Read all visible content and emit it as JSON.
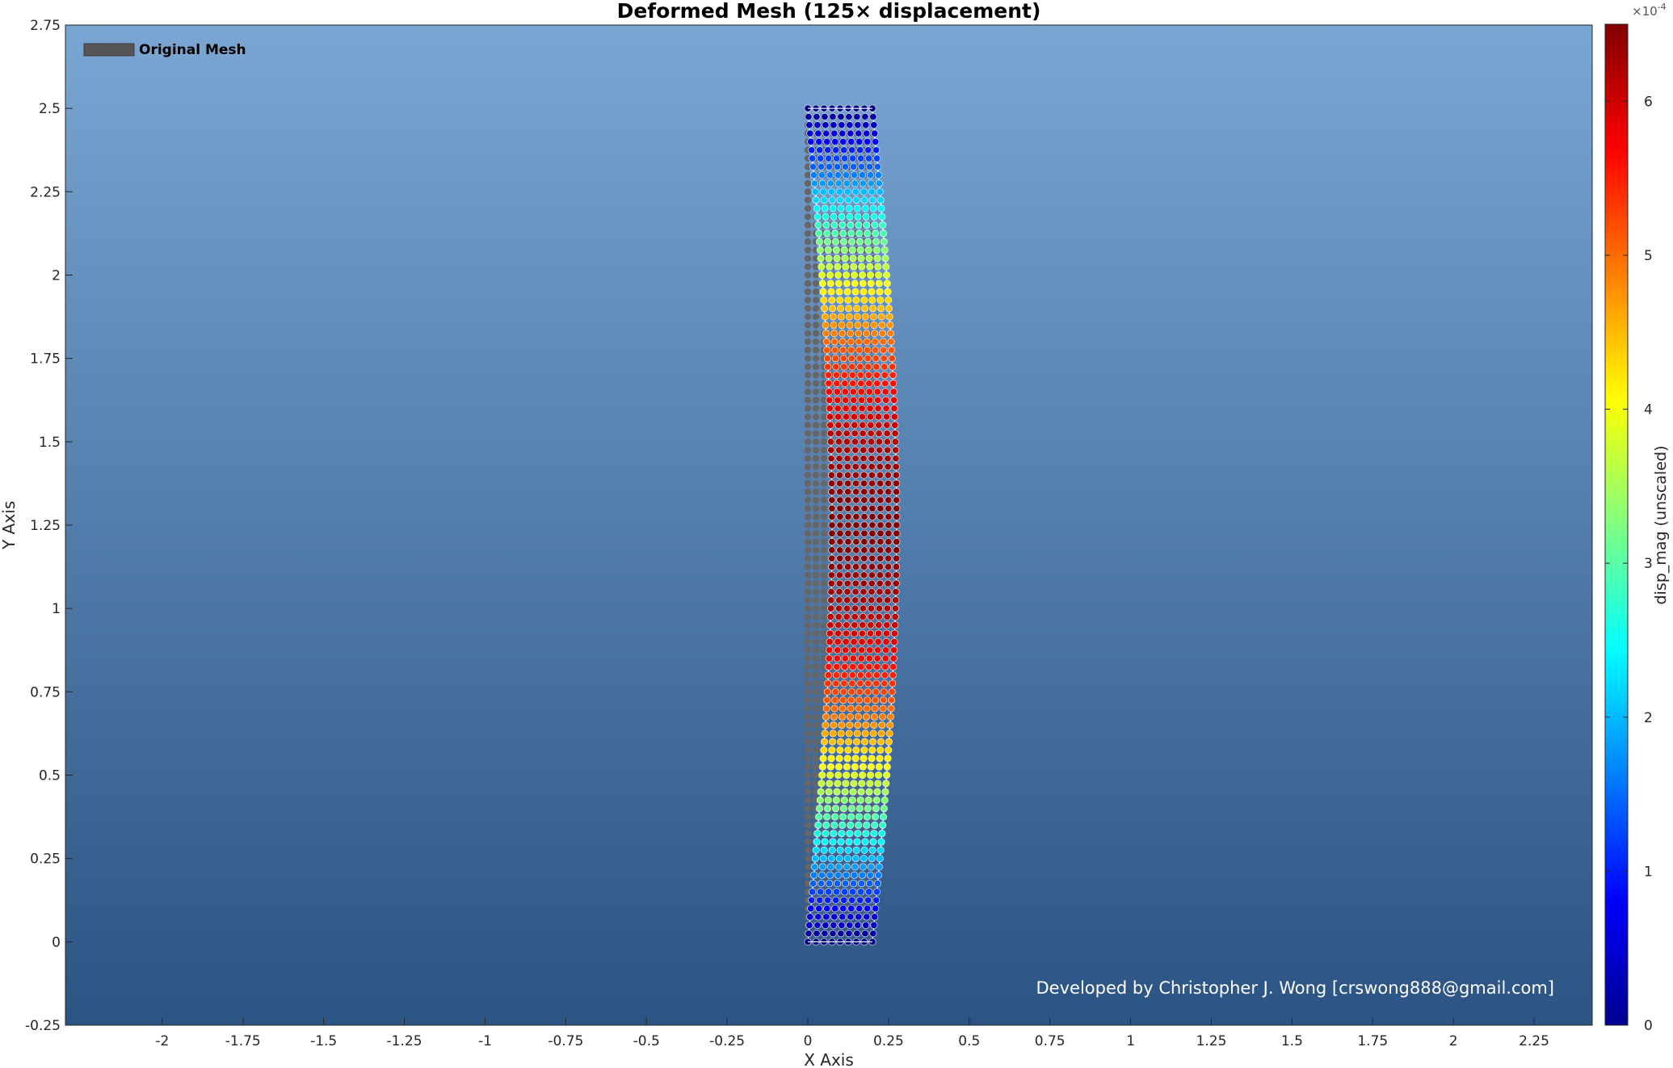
{
  "figure": {
    "credit": "Developed by Christopher J. Wong [crswong888@gmail.com]",
    "background_top": "#7aa6d3",
    "background_bottom": "#2b5383"
  },
  "chart_data": {
    "type": "scatter",
    "title": "Deformed Mesh (125× displacement)",
    "xlabel": "X Axis",
    "ylabel": "Y Axis",
    "xlim": [
      -2.3,
      2.43
    ],
    "ylim": [
      -0.25,
      2.75
    ],
    "xticks": [
      -2,
      -1.75,
      -1.5,
      -1.25,
      -1,
      -0.75,
      -0.5,
      -0.25,
      0,
      0.25,
      0.5,
      0.75,
      1,
      1.25,
      1.5,
      1.75,
      2,
      2.25
    ],
    "xtick_labels": [
      "-2",
      "-1.75",
      "-1.5",
      "-1.25",
      "-1",
      "-0.75",
      "-0.5",
      "-0.25",
      "0",
      "0.25",
      "0.5",
      "0.75",
      "1",
      "1.25",
      "1.5",
      "1.75",
      "2",
      "2.25"
    ],
    "yticks": [
      -0.25,
      0,
      0.25,
      0.5,
      0.75,
      1,
      1.25,
      1.5,
      1.75,
      2,
      2.25,
      2.5,
      2.75
    ],
    "ytick_labels": [
      "-0.25",
      "0",
      "0.25",
      "0.5",
      "0.75",
      "1",
      "1.25",
      "1.5",
      "1.75",
      "2",
      "2.25",
      "2.5",
      "2.75"
    ],
    "grid": false,
    "legend": {
      "position": "top-left",
      "entries": [
        {
          "label": "Original Mesh",
          "color": "#555555"
        }
      ]
    },
    "mesh": {
      "original_x_range": [
        0,
        0.2
      ],
      "original_y_range": [
        0,
        2.5
      ],
      "nodes_x": 9,
      "nodes_y": 101,
      "max_lateral_deflection": 0.075,
      "deformed_color": "jet colormap of displacement magnitude",
      "original_color": "#666666"
    },
    "colorbar": {
      "label": "disp_mag (unscaled)",
      "exponent_label": "×10",
      "exponent": "-4",
      "range": [
        0,
        6.5
      ],
      "ticks": [
        0,
        1,
        2,
        3,
        4,
        5,
        6
      ],
      "tick_labels": [
        "0",
        "1",
        "2",
        "3",
        "4",
        "5",
        "6"
      ],
      "colormap": "jet"
    }
  }
}
